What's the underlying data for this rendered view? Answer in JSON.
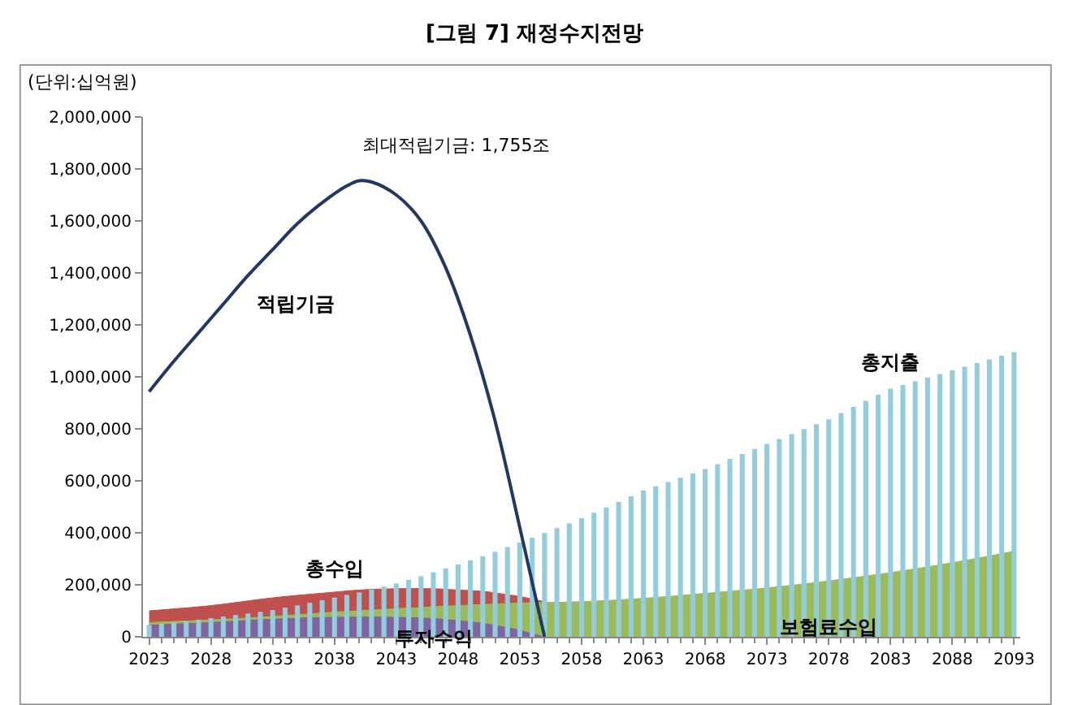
{
  "chart_data": {
    "type": "bar",
    "title": "[그림 7] 재정수지전망",
    "ylabel": "(단위:십억원)",
    "x": [
      2023,
      2024,
      2025,
      2026,
      2027,
      2028,
      2029,
      2030,
      2031,
      2032,
      2033,
      2034,
      2035,
      2036,
      2037,
      2038,
      2039,
      2040,
      2041,
      2042,
      2043,
      2044,
      2045,
      2046,
      2047,
      2048,
      2049,
      2050,
      2051,
      2052,
      2053,
      2054,
      2055,
      2056,
      2057,
      2058,
      2059,
      2060,
      2061,
      2062,
      2063,
      2064,
      2065,
      2066,
      2067,
      2068,
      2069,
      2070,
      2071,
      2072,
      2073,
      2074,
      2075,
      2076,
      2077,
      2078,
      2079,
      2080,
      2081,
      2082,
      2083,
      2084,
      2085,
      2086,
      2087,
      2088,
      2089,
      2090,
      2091,
      2092,
      2093
    ],
    "series": [
      {
        "name": "총수입",
        "type": "area",
        "color": "#c0504d",
        "x": [
          2023,
          2028,
          2033,
          2038,
          2040,
          2043,
          2046,
          2048,
          2050,
          2052,
          2053,
          2055
        ],
        "values": [
          100000,
          120000,
          150000,
          172000,
          180000,
          185000,
          185000,
          180000,
          175000,
          162000,
          155000,
          135000
        ]
      },
      {
        "name": "보험료수입",
        "type": "area",
        "color": "#9bbb59",
        "x": [
          2023,
          2028,
          2033,
          2038,
          2043,
          2048,
          2053,
          2058,
          2063,
          2068,
          2073,
          2078,
          2083,
          2088,
          2093
        ],
        "values": [
          55000,
          65000,
          78000,
          95000,
          108000,
          120000,
          130000,
          135000,
          148000,
          167000,
          188000,
          215000,
          247000,
          285000,
          329000
        ]
      },
      {
        "name": "투자수익",
        "type": "area",
        "color": "#8064a2",
        "x": [
          2023,
          2028,
          2033,
          2038,
          2043,
          2046,
          2048,
          2050,
          2052,
          2053,
          2054,
          2055
        ],
        "values": [
          45000,
          55000,
          68000,
          75000,
          75000,
          70000,
          62000,
          52000,
          35000,
          25000,
          12000,
          0
        ]
      },
      {
        "name": "총지출",
        "color": "#93cddd",
        "values": [
          45000,
          50000,
          55000,
          60000,
          66000,
          72000,
          78000,
          84000,
          90000,
          96000,
          103000,
          112000,
          121000,
          131000,
          141000,
          151000,
          161000,
          171000,
          182000,
          193000,
          205000,
          219000,
          233000,
          248000,
          263000,
          278000,
          294000,
          310000,
          327000,
          345000,
          363000,
          381000,
          399000,
          418000,
          437000,
          456000,
          477000,
          498000,
          519000,
          541000,
          563000,
          579000,
          595000,
          612000,
          628000,
          645000,
          664000,
          684000,
          703000,
          723000,
          742000,
          761000,
          780000,
          799000,
          818000,
          837000,
          861000,
          884000,
          908000,
          931000,
          955000,
          969000,
          983000,
          997000,
          1011000,
          1025000,
          1039000,
          1053000,
          1067000,
          1081000,
          1095000
        ]
      },
      {
        "name": "적립기금",
        "type": "line",
        "color": "#1f3864",
        "x": [
          2023,
          2025,
          2027,
          2029,
          2031,
          2033,
          2035,
          2037,
          2039,
          2040,
          2041,
          2043,
          2045,
          2047,
          2049,
          2051,
          2053,
          2055
        ],
        "values": [
          943000,
          1060000,
          1170000,
          1280000,
          1390000,
          1490000,
          1590000,
          1670000,
          1735000,
          1755000,
          1750000,
          1700000,
          1600000,
          1420000,
          1160000,
          830000,
          420000,
          0
        ]
      }
    ],
    "annotations": [
      {
        "text": "최대적립기금: 1,755조",
        "x": 2040,
        "y": 1755000
      }
    ],
    "xlim": [
      2022.5,
      2093.5
    ],
    "xticks": [
      2023,
      2028,
      2033,
      2038,
      2043,
      2048,
      2053,
      2058,
      2063,
      2068,
      2073,
      2078,
      2083,
      2088,
      2093
    ],
    "ylim": [
      0,
      2000000
    ],
    "yticks": [
      {
        "value": 0,
        "label": "0"
      },
      {
        "value": 200000,
        "label": "200,000"
      },
      {
        "value": 400000,
        "label": "400,000"
      },
      {
        "value": 600000,
        "label": "600,000"
      },
      {
        "value": 800000,
        "label": "800,000"
      },
      {
        "value": 1000000,
        "label": "1,000,000"
      },
      {
        "value": 1200000,
        "label": "1,200,000"
      },
      {
        "value": 1400000,
        "label": "1,400,000"
      },
      {
        "value": 1600000,
        "label": "1,600,000"
      },
      {
        "value": 1800000,
        "label": "1,800,000"
      },
      {
        "value": 2000000,
        "label": "2,000,000"
      }
    ],
    "marker": "none",
    "line_style": "solid"
  }
}
